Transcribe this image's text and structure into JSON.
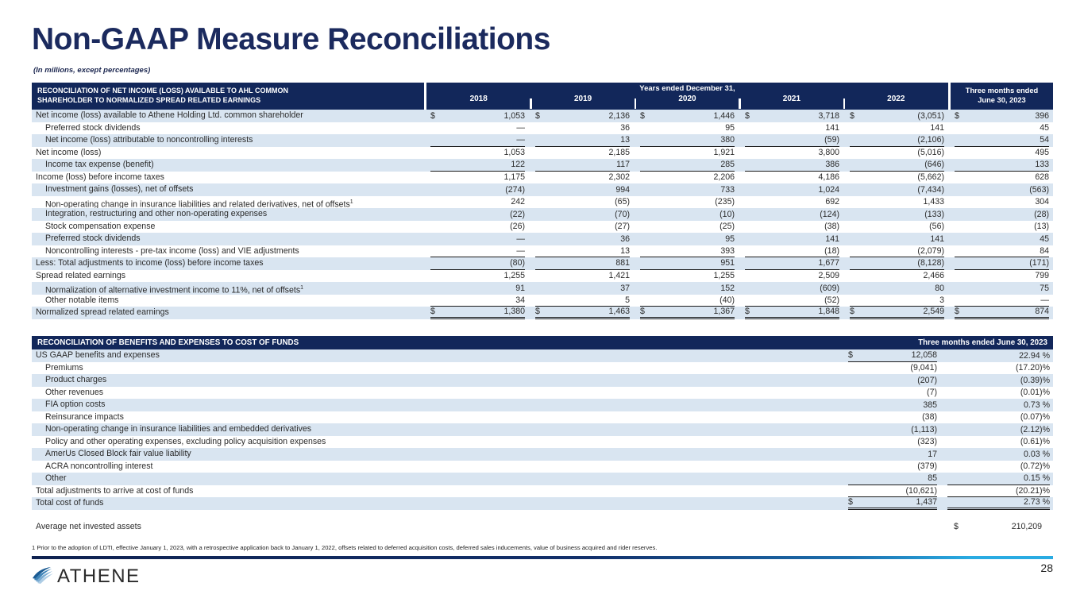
{
  "title": "Non-GAAP Measure Reconciliations",
  "subtitle": "(In millions, except percentages)",
  "table1": {
    "header_line1": "RECONCILIATION OF NET INCOME (LOSS) AVAILABLE TO AHL COMMON",
    "header_line2": "SHAREHOLDER TO NORMALIZED SPREAD RELATED EARNINGS",
    "years_group_label": "Years ended December 31,",
    "years": [
      "2018",
      "2019",
      "2020",
      "2021",
      "2022"
    ],
    "period_label_line1": "Three months ended",
    "period_label_line2": "June 30, 2023",
    "rows": [
      {
        "label": "Net income (loss) available to Athene Holding Ltd. common shareholder",
        "indent": 0,
        "dollar": true,
        "values": [
          "1,053",
          "2,136",
          "1,446",
          "3,718",
          "(3,051)",
          "396"
        ]
      },
      {
        "label": "Preferred stock dividends",
        "indent": 1,
        "values": [
          "—",
          "36",
          "95",
          "141",
          "141",
          "45"
        ]
      },
      {
        "label": "Net income (loss) attributable to noncontrolling interests",
        "indent": 1,
        "underline": "single",
        "values": [
          "—",
          "13",
          "380",
          "(59)",
          "(2,106)",
          "54"
        ]
      },
      {
        "label": "Net income (loss)",
        "indent": 0,
        "values": [
          "1,053",
          "2,185",
          "1,921",
          "3,800",
          "(5,016)",
          "495"
        ]
      },
      {
        "label": "Income tax expense (benefit)",
        "indent": 1,
        "underline": "single",
        "values": [
          "122",
          "117",
          "285",
          "386",
          "(646)",
          "133"
        ]
      },
      {
        "label": "Income (loss) before income taxes",
        "indent": 0,
        "values": [
          "1,175",
          "2,302",
          "2,206",
          "4,186",
          "(5,662)",
          "628"
        ]
      },
      {
        "label": "Investment gains (losses), net of offsets",
        "indent": 1,
        "values": [
          "(274)",
          "994",
          "733",
          "1,024",
          "(7,434)",
          "(563)"
        ]
      },
      {
        "label": "Non-operating change in insurance liabilities and related derivatives, net of offsets",
        "sup": "1",
        "indent": 1,
        "values": [
          "242",
          "(65)",
          "(235)",
          "692",
          "1,433",
          "304"
        ]
      },
      {
        "label": "Integration, restructuring and other non-operating expenses",
        "indent": 1,
        "values": [
          "(22)",
          "(70)",
          "(10)",
          "(124)",
          "(133)",
          "(28)"
        ]
      },
      {
        "label": "Stock compensation expense",
        "indent": 1,
        "values": [
          "(26)",
          "(27)",
          "(25)",
          "(38)",
          "(56)",
          "(13)"
        ]
      },
      {
        "label": "Preferred stock dividends",
        "indent": 1,
        "values": [
          "—",
          "36",
          "95",
          "141",
          "141",
          "45"
        ]
      },
      {
        "label": "Noncontrolling interests - pre-tax income (loss) and VIE adjustments",
        "indent": 1,
        "underline": "single",
        "values": [
          "—",
          "13",
          "393",
          "(18)",
          "(2,079)",
          "84"
        ]
      },
      {
        "label": "Less: Total adjustments to income (loss) before income taxes",
        "indent": 0,
        "underline": "single",
        "values": [
          "(80)",
          "881",
          "951",
          "1,677",
          "(8,128)",
          "(171)"
        ]
      },
      {
        "label": "Spread related earnings",
        "indent": 0,
        "values": [
          "1,255",
          "1,421",
          "1,255",
          "2,509",
          "2,466",
          "799"
        ]
      },
      {
        "label": "Normalization of alternative investment income to 11%, net of offsets",
        "sup": "1",
        "indent": 1,
        "values": [
          "91",
          "37",
          "152",
          "(609)",
          "80",
          "75"
        ]
      },
      {
        "label": "Other notable items",
        "indent": 1,
        "underline": "single",
        "values": [
          "34",
          "5",
          "(40)",
          "(52)",
          "3",
          "—"
        ]
      },
      {
        "label": "Normalized spread related earnings",
        "indent": 0,
        "dollar": true,
        "underline": "double",
        "values": [
          "1,380",
          "1,463",
          "1,367",
          "1,848",
          "2,549",
          "874"
        ]
      }
    ]
  },
  "table2": {
    "header_title": "RECONCILIATION OF BENEFITS AND EXPENSES TO COST OF FUNDS",
    "period_label": "Three months ended June 30, 2023",
    "rows": [
      {
        "label": "US GAAP benefits and expenses",
        "indent": 0,
        "dollar": true,
        "value": "12,058",
        "pct": "22.94 %",
        "underline": "value"
      },
      {
        "label": "Premiums",
        "indent": 1,
        "value": "(9,041)",
        "pct": "(17.20)%"
      },
      {
        "label": "Product charges",
        "indent": 1,
        "value": "(207)",
        "pct": "(0.39)%"
      },
      {
        "label": "Other revenues",
        "indent": 1,
        "value": "(7)",
        "pct": "(0.01)%"
      },
      {
        "label": "FIA option costs",
        "indent": 1,
        "value": "385",
        "pct": "0.73 %"
      },
      {
        "label": "Reinsurance impacts",
        "indent": 1,
        "value": "(38)",
        "pct": "(0.07)%"
      },
      {
        "label": "Non-operating change in insurance liabilities and embedded derivatives",
        "indent": 1,
        "value": "(1,113)",
        "pct": "(2.12)%"
      },
      {
        "label": "Policy and other operating expenses, excluding policy acquisition expenses",
        "indent": 1,
        "value": "(323)",
        "pct": "(0.61)%"
      },
      {
        "label": "AmerUs Closed Block fair value liability",
        "indent": 1,
        "value": "17",
        "pct": "0.03 %"
      },
      {
        "label": "ACRA noncontrolling interest",
        "indent": 1,
        "value": "(379)",
        "pct": "(0.72)%"
      },
      {
        "label": "Other",
        "indent": 1,
        "value": "85",
        "pct": "0.15 %",
        "underline": "single"
      },
      {
        "label": "Total adjustments to arrive at cost of funds",
        "indent": 0,
        "value": "(10,621)",
        "pct": "(20.21)%",
        "underline": "single"
      },
      {
        "label": "Total cost of funds",
        "indent": 0,
        "dollar": true,
        "value": "1,437",
        "pct": "2.73 %",
        "underline": "double"
      }
    ],
    "average_row": {
      "label": "Average net invested assets",
      "dollar": "$",
      "value": "210,209"
    }
  },
  "footnote": "1 Prior to the adoption of LDTI, effective January 1, 2023, with a retrospective application back to January 1, 2022, offsets related to deferred acquisition costs, deferred sales inducements, value of business acquired and rider reserves.",
  "footer": {
    "brand": "ATHENE",
    "page_number": "28"
  },
  "colors": {
    "navy": "#12275a",
    "stripe": "#d9e5f1",
    "cyan": "#29abe2",
    "title_navy": "#1b2a5e"
  }
}
